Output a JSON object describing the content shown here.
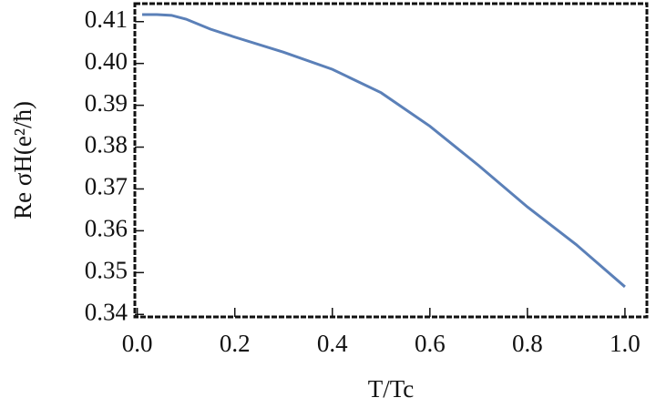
{
  "chart_data": {
    "type": "line",
    "xlabel": "T/Tc",
    "ylabel": "Re σH(e²/ħ)",
    "x": [
      0.01,
      0.04,
      0.07,
      0.1,
      0.15,
      0.2,
      0.3,
      0.4,
      0.5,
      0.6,
      0.7,
      0.8,
      0.9,
      1.0
    ],
    "series": [
      {
        "color": "#5b80b8",
        "values": [
          0.4117,
          0.4117,
          0.4115,
          0.4106,
          0.4082,
          0.4063,
          0.4027,
          0.3986,
          0.393,
          0.385,
          0.3756,
          0.3657,
          0.3567,
          0.3466
        ]
      }
    ],
    "xlim": [
      -0.005,
      1.045
    ],
    "ylim": [
      0.3394,
      0.4143
    ],
    "xticks": [
      {
        "value": 0,
        "label": "0.0"
      },
      0.2,
      0.4,
      0.6,
      0.8,
      {
        "value": 1,
        "label": "1.0"
      }
    ],
    "yticks": [
      0.34,
      0.35,
      0.36,
      0.37,
      0.38,
      0.39,
      {
        "value": 0.4,
        "label": "0.40"
      },
      0.41
    ]
  }
}
